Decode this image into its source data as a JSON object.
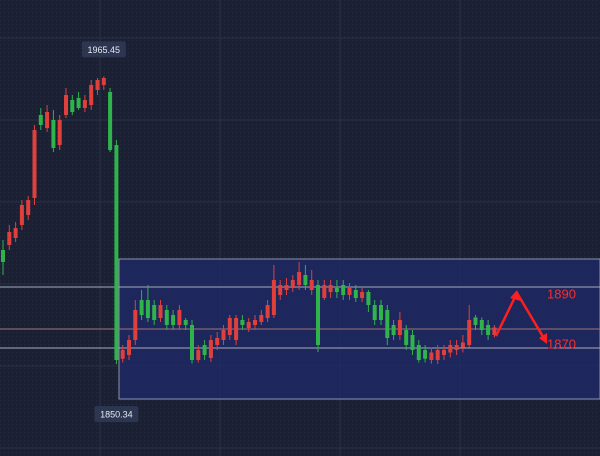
{
  "chart_data": {
    "type": "candlestick",
    "up_color": "#e0403c",
    "down_color": "#2fb34a",
    "ylim": [
      1813.6,
      1996
    ],
    "high_label": 1965.45,
    "low_label": 1850.34,
    "targets": [
      1890,
      1870
    ],
    "open": [
      1896,
      1898,
      1900.8,
      1906,
      1910,
      1916.8,
      1950,
      1944.8,
      1948,
      1938,
      1950,
      1956,
      1956.8,
      1952.8,
      1954,
      1960,
      1962,
      1959.2,
      1938,
      1852.5,
      1854,
      1860,
      1876,
      1876,
      1874,
      1868.8,
      1872,
      1870,
      1866,
      1868,
      1866,
      1852,
      1858,
      1852.8,
      1858,
      1860,
      1862,
      1860,
      1868,
      1864.8,
      1866,
      1867.2,
      1868.8,
      1870,
      1878,
      1880,
      1880.8,
      1882,
      1886,
      1880,
      1882,
      1876.8,
      1879.2,
      1880.8,
      1882,
      1878,
      1880,
      1876.8,
      1879.2,
      1874,
      1874,
      1872,
      1866,
      1862,
      1864,
      1862,
      1858,
      1856,
      1852,
      1852,
      1854,
      1855,
      1856,
      1857,
      1858,
      1869,
      1868,
      1866,
      1862
    ],
    "high": [
      1900,
      1906,
      1907.2,
      1916,
      1917.6,
      1946,
      1952.8,
      1954,
      1952,
      1950,
      1960.8,
      1958,
      1959.2,
      1958,
      1964,
      1964.8,
      1965.45,
      1960.8,
      1940,
      1858,
      1862,
      1876,
      1880,
      1882,
      1876,
      1876,
      1874,
      1872,
      1874,
      1868.8,
      1868,
      1858,
      1860,
      1862,
      1863.2,
      1866,
      1870,
      1870,
      1870,
      1868.8,
      1870,
      1872,
      1876,
      1890,
      1884,
      1884.8,
      1886,
      1891.2,
      1890,
      1888,
      1884,
      1884,
      1884,
      1884,
      1884,
      1882.8,
      1882,
      1880.8,
      1880,
      1876,
      1876,
      1874,
      1868,
      1871.2,
      1866,
      1864,
      1860,
      1858,
      1857,
      1858,
      1858,
      1860,
      1860,
      1862,
      1874,
      1870,
      1869,
      1868,
      1866
    ],
    "low": [
      1886,
      1896,
      1899.2,
      1904,
      1908,
      1914,
      1944,
      1943.2,
      1935.2,
      1936,
      1948.8,
      1950,
      1952,
      1951.2,
      1952,
      1958,
      1960,
      1935.2,
      1850.34,
      1851,
      1852,
      1858,
      1868,
      1867.2,
      1866,
      1867.2,
      1864,
      1864,
      1864,
      1864,
      1850.6,
      1851,
      1852,
      1851.2,
      1856,
      1858,
      1860,
      1858,
      1864,
      1863.2,
      1864,
      1866,
      1867.2,
      1868.8,
      1876,
      1878,
      1879.2,
      1880,
      1880,
      1878,
      1855.2,
      1876,
      1876.8,
      1876.8,
      1876,
      1876,
      1875.2,
      1875.2,
      1871.2,
      1866,
      1866,
      1858,
      1860,
      1860,
      1856,
      1854,
      1851,
      1851,
      1850.5,
      1850.4,
      1852,
      1853,
      1854,
      1855,
      1857,
      1864,
      1862,
      1860,
      1861
    ],
    "close": [
      1891.2,
      1903.2,
      1904.8,
      1914,
      1916,
      1944,
      1946,
      1951.2,
      1936.8,
      1948,
      1958,
      1951.2,
      1952.8,
      1956,
      1962,
      1964,
      1964.8,
      1936,
      1852,
      1856,
      1860,
      1872,
      1870,
      1868.8,
      1868,
      1874,
      1866,
      1866,
      1872,
      1866,
      1852,
      1856,
      1854,
      1860,
      1860.8,
      1864,
      1868.8,
      1868.8,
      1866,
      1867.2,
      1868,
      1870,
      1874,
      1884,
      1882,
      1882,
      1884,
      1887.2,
      1882,
      1884,
      1858,
      1882,
      1882,
      1879.2,
      1878,
      1880.8,
      1876.8,
      1879.2,
      1874,
      1868,
      1868,
      1860.8,
      1862,
      1868,
      1858,
      1856,
      1852,
      1852.5,
      1855,
      1856,
      1856,
      1858,
      1858,
      1859,
      1868,
      1866,
      1864,
      1862,
      1865
    ]
  }
}
